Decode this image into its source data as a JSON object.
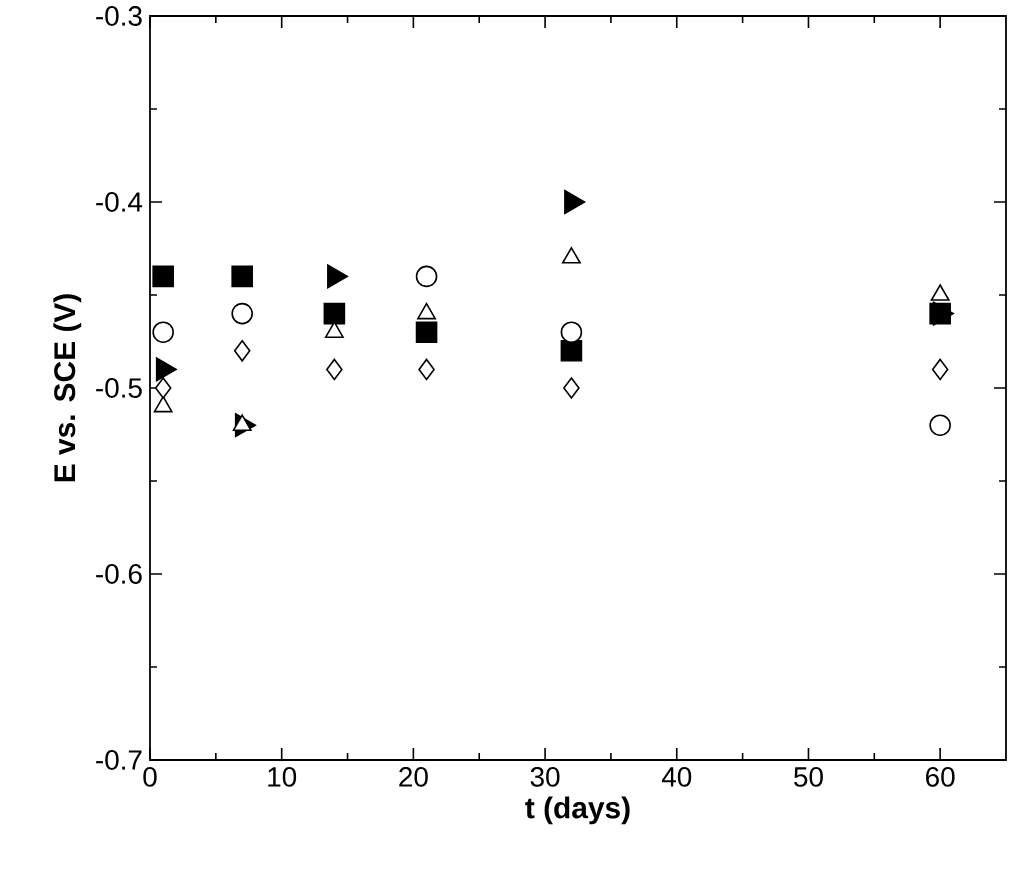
{
  "chart_data": {
    "type": "scatter",
    "xlabel": "t (days)",
    "ylabel": "E vs. SCE (V)",
    "x": [
      1,
      7,
      14,
      21,
      32,
      60
    ],
    "series": [
      {
        "color": "#000000",
        "marker": "square",
        "values": [
          -0.44,
          -0.44,
          -0.46,
          -0.47,
          -0.48,
          -0.46
        ]
      },
      {
        "color": "#ffffff",
        "marker": "circle",
        "values": [
          -0.47,
          -0.46,
          null,
          -0.44,
          -0.47,
          -0.52
        ]
      },
      {
        "color": "#000000",
        "marker": "triangle",
        "values": [
          -0.49,
          -0.52,
          -0.44,
          null,
          -0.4,
          -0.46
        ]
      },
      {
        "color": "#ffffff",
        "marker": "triangle",
        "values": [
          -0.51,
          -0.52,
          -0.47,
          -0.46,
          -0.43,
          -0.45
        ]
      },
      {
        "color": "#ffffff",
        "marker": "diamond",
        "values": [
          -0.5,
          -0.48,
          -0.49,
          -0.49,
          -0.5,
          -0.49
        ]
      }
    ],
    "xlim": [
      0,
      65
    ],
    "xticks": [
      0,
      10,
      20,
      30,
      40,
      50,
      60
    ],
    "ylim": [
      -0.7,
      -0.3
    ],
    "yticks": [
      -0.7,
      -0.6,
      -0.5,
      -0.4,
      -0.3
    ]
  }
}
